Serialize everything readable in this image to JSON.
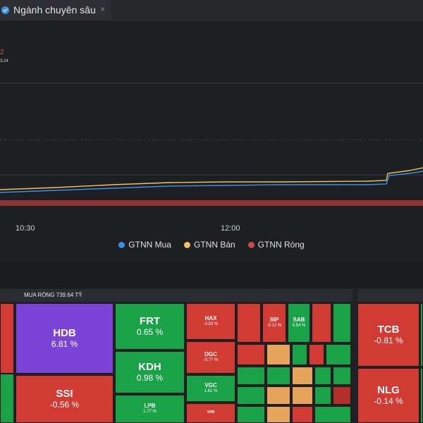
{
  "tab": {
    "label": "Ngành chuyên sâu",
    "close": "×"
  },
  "chart": {
    "top_value_red": "2",
    "top_value_white": "3.24",
    "x_ticks": [
      "10:30",
      "12:00"
    ],
    "colors": {
      "mua": "#3b8fe8",
      "ban": "#f0c45a",
      "rong": "#c74b4b",
      "grid": "#3a3b40"
    }
  },
  "legend": {
    "mua": "GTNN Mua",
    "ban": "GTNN Bán",
    "rong": "GTNN Ròng"
  },
  "heatmap": {
    "header_left": "MUA RÒNG 739.64 TỶ",
    "tiles": {
      "hdb": {
        "t": "HDB",
        "p": "6.81 %"
      },
      "ssi": {
        "t": "SSI",
        "p": "-0.56 %"
      },
      "frt": {
        "t": "FRT",
        "p": "0.65 %"
      },
      "kdh": {
        "t": "KDH",
        "p": "0.98 %"
      },
      "lpb": {
        "t": "LPB",
        "p": "1.77 %"
      },
      "hax": {
        "t": "HAX",
        "p": "-3.83 %"
      },
      "dgc": {
        "t": "DGC",
        "p": "-0.77 %"
      },
      "vgc": {
        "t": "VGC",
        "p": "1.81 %"
      },
      "vpb": {
        "t": "VPB",
        "p": ""
      },
      "sip": {
        "t": "SIP",
        "p": "-0.12 %"
      },
      "sab": {
        "t": "SAB",
        "p": "0.54 %"
      },
      "tcb": {
        "t": "TCB",
        "p": "-0.81 %"
      },
      "nlg": {
        "t": "NLG",
        "p": "-0.14 %"
      }
    }
  }
}
